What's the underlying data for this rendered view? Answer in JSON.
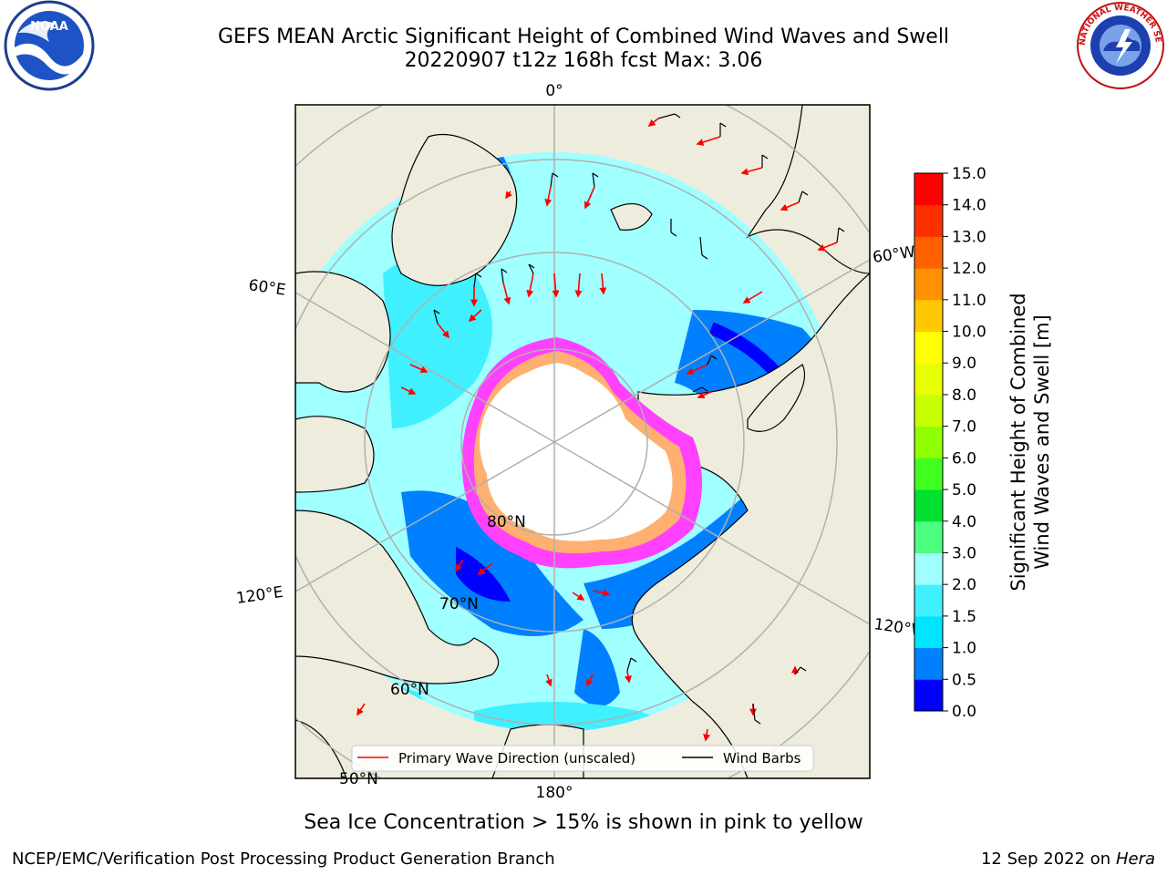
{
  "title_line1": "GEFS MEAN Arctic Significant Height of Combined Wind Waves and Swell",
  "title_line2": "20220907 t12z 168h fcst   Max: 3.06",
  "logos": {
    "left_icon": "noaa-logo-icon",
    "left_text": "NOAA",
    "right_icon": "nws-logo-icon",
    "right_text": "NATIONAL WEATHER SERVICE"
  },
  "map_labels": {
    "lon_0": "0°",
    "lon_60w": "60°W",
    "lon_60e": "60°E",
    "lon_120e": "120°E",
    "lon_120w": "120°W",
    "lon_180": "180°",
    "lat_80": "80°N",
    "lat_70": "70°N",
    "lat_60": "60°N",
    "lat_50": "50°N"
  },
  "legend": {
    "wave_label": "Primary Wave Direction (unscaled)",
    "barb_label": "Wind Barbs",
    "wave_color": "#ff0000",
    "barb_color": "#000000"
  },
  "colorbar": {
    "label_line1": "Significant Height of Combined",
    "label_line2": "Wind Waves and Swell [m]",
    "ticks": [
      "0.0",
      "0.5",
      "1.0",
      "1.5",
      "2.0",
      "3.0",
      "4.0",
      "5.0",
      "6.0",
      "7.0",
      "8.0",
      "9.0",
      "10.0",
      "11.0",
      "12.0",
      "13.0",
      "14.0",
      "15.0"
    ],
    "colors": [
      "#0000ff",
      "#0080ff",
      "#00e5ff",
      "#40f0ff",
      "#a0ffff",
      "#4cff80",
      "#00e030",
      "#40ff20",
      "#90ff00",
      "#c8ff00",
      "#e8ff00",
      "#ffff00",
      "#ffc800",
      "#ff9000",
      "#ff6000",
      "#ff3000",
      "#ff0000"
    ]
  },
  "colors": {
    "land": "#eeeddd",
    "ice_edge_pink": "#ff40ff",
    "ice_edge_orange": "#ffb070",
    "grid": "#b0b0b0"
  },
  "footer": {
    "ice_note": "Sea Ice Concentration > 15% is shown in pink to yellow",
    "credit_left": "NCEP/EMC/Verification Post Processing Product Generation Branch",
    "credit_right_date": "12 Sep 2022 on",
    "credit_right_host": "Hera"
  }
}
